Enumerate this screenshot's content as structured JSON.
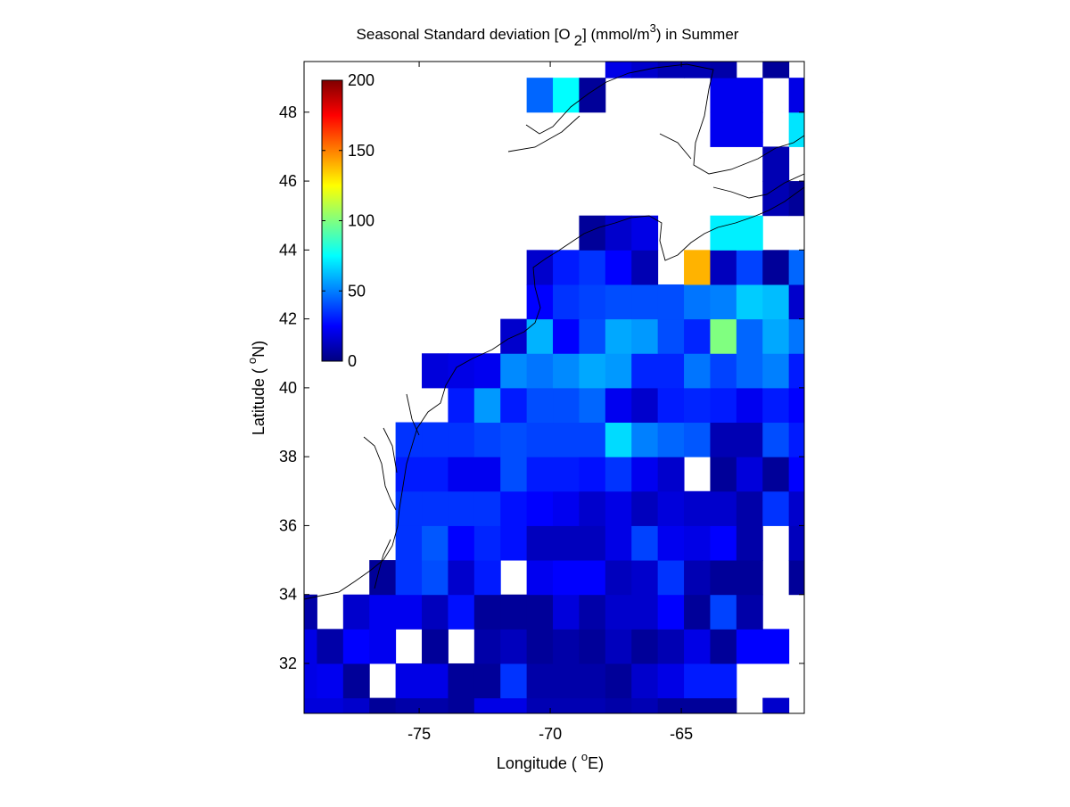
{
  "chart_data": {
    "type": "heatmap",
    "title_parts": [
      "Seasonal Standard deviation [O",
      "2",
      "] (mmol/m",
      "3",
      ") in  Summer"
    ],
    "xlabel_parts": [
      "Longitude ( ",
      "o",
      "E)"
    ],
    "ylabel_parts": [
      "Latitude ( ",
      "o",
      "N)"
    ],
    "colormap": "jet",
    "clim": [
      0,
      200
    ],
    "cticks": [
      0,
      50,
      100,
      150,
      200
    ],
    "xlim": [
      -79.39,
      -60.31
    ],
    "ylim": [
      30.55,
      49.47
    ],
    "xticks": [
      -75,
      -70,
      -65
    ],
    "yticks": [
      32,
      34,
      36,
      38,
      40,
      42,
      44,
      46,
      48
    ],
    "x": [
      -79.4,
      -78.4,
      -77.4,
      -76.4,
      -75.4,
      -74.4,
      -73.4,
      -72.4,
      -71.4,
      -70.4,
      -69.4,
      -68.4,
      -67.4,
      -66.4,
      -65.4,
      -64.4,
      -63.4,
      -62.4,
      -61.4,
      -60.4
    ],
    "y": [
      30.5,
      31.5,
      32.5,
      33.5,
      34.5,
      35.5,
      36.5,
      37.5,
      38.5,
      39.5,
      40.5,
      41.5,
      42.5,
      43.5,
      44.5,
      45.5,
      46.5,
      47.5,
      48.5,
      49.5
    ],
    "values": [
      [
        18,
        18,
        15,
        5,
        8,
        8,
        5,
        20,
        20,
        10,
        10,
        10,
        8,
        10,
        5,
        5,
        5,
        null,
        15,
        null
      ],
      [
        20,
        22,
        5,
        null,
        20,
        20,
        5,
        5,
        35,
        8,
        8,
        8,
        5,
        15,
        20,
        30,
        30,
        null,
        null,
        null
      ],
      [
        20,
        8,
        25,
        22,
        null,
        5,
        null,
        8,
        12,
        5,
        8,
        5,
        12,
        5,
        10,
        20,
        5,
        25,
        25,
        null
      ],
      [
        8,
        null,
        15,
        22,
        22,
        12,
        28,
        5,
        5,
        5,
        18,
        8,
        15,
        15,
        25,
        5,
        38,
        8,
        null,
        null
      ],
      [
        null,
        null,
        null,
        5,
        35,
        40,
        15,
        30,
        null,
        22,
        25,
        25,
        12,
        15,
        35,
        10,
        5,
        5,
        null,
        5
      ],
      [
        null,
        null,
        null,
        null,
        35,
        42,
        25,
        32,
        28,
        12,
        12,
        12,
        20,
        38,
        22,
        20,
        25,
        8,
        null,
        12
      ],
      [
        null,
        null,
        null,
        null,
        35,
        35,
        35,
        35,
        28,
        25,
        22,
        15,
        20,
        12,
        18,
        15,
        15,
        8,
        35,
        15
      ],
      [
        null,
        null,
        null,
        null,
        30,
        30,
        22,
        22,
        40,
        30,
        30,
        28,
        35,
        22,
        15,
        null,
        5,
        18,
        5,
        25
      ],
      [
        null,
        null,
        null,
        null,
        35,
        35,
        35,
        38,
        40,
        38,
        38,
        38,
        68,
        50,
        45,
        42,
        10,
        10,
        40,
        30
      ],
      [
        null,
        null,
        null,
        null,
        null,
        null,
        30,
        55,
        30,
        40,
        40,
        45,
        22,
        15,
        30,
        32,
        30,
        22,
        30,
        25
      ],
      [
        null,
        null,
        null,
        null,
        null,
        18,
        20,
        22,
        52,
        48,
        52,
        58,
        55,
        32,
        32,
        48,
        38,
        45,
        50,
        30
      ],
      [
        null,
        null,
        null,
        null,
        null,
        null,
        null,
        null,
        15,
        60,
        25,
        40,
        58,
        55,
        40,
        32,
        100,
        45,
        58,
        48
      ],
      [
        null,
        null,
        null,
        null,
        null,
        null,
        null,
        null,
        null,
        25,
        35,
        38,
        40,
        40,
        40,
        48,
        50,
        65,
        62,
        15
      ],
      [
        null,
        null,
        null,
        null,
        null,
        null,
        null,
        null,
        null,
        15,
        30,
        35,
        25,
        10,
        null,
        140,
        12,
        38,
        5,
        45
      ],
      [
        null,
        null,
        null,
        null,
        null,
        null,
        null,
        null,
        null,
        null,
        null,
        5,
        15,
        20,
        null,
        null,
        72,
        72,
        null,
        null
      ],
      [
        null,
        null,
        null,
        null,
        null,
        null,
        null,
        null,
        null,
        null,
        null,
        null,
        null,
        null,
        null,
        null,
        null,
        null,
        10,
        5
      ],
      [
        null,
        null,
        null,
        null,
        null,
        null,
        null,
        null,
        null,
        null,
        null,
        null,
        null,
        null,
        null,
        null,
        null,
        null,
        10,
        null
      ],
      [
        null,
        null,
        null,
        null,
        null,
        null,
        null,
        null,
        null,
        null,
        null,
        null,
        null,
        null,
        null,
        null,
        22,
        22,
        null,
        70
      ],
      [
        null,
        null,
        null,
        null,
        null,
        null,
        null,
        null,
        null,
        45,
        75,
        5,
        null,
        null,
        null,
        null,
        22,
        22,
        null,
        20
      ],
      [
        null,
        null,
        null,
        null,
        null,
        null,
        null,
        null,
        null,
        null,
        null,
        null,
        20,
        15,
        10,
        10,
        8,
        null,
        5,
        null
      ]
    ]
  }
}
